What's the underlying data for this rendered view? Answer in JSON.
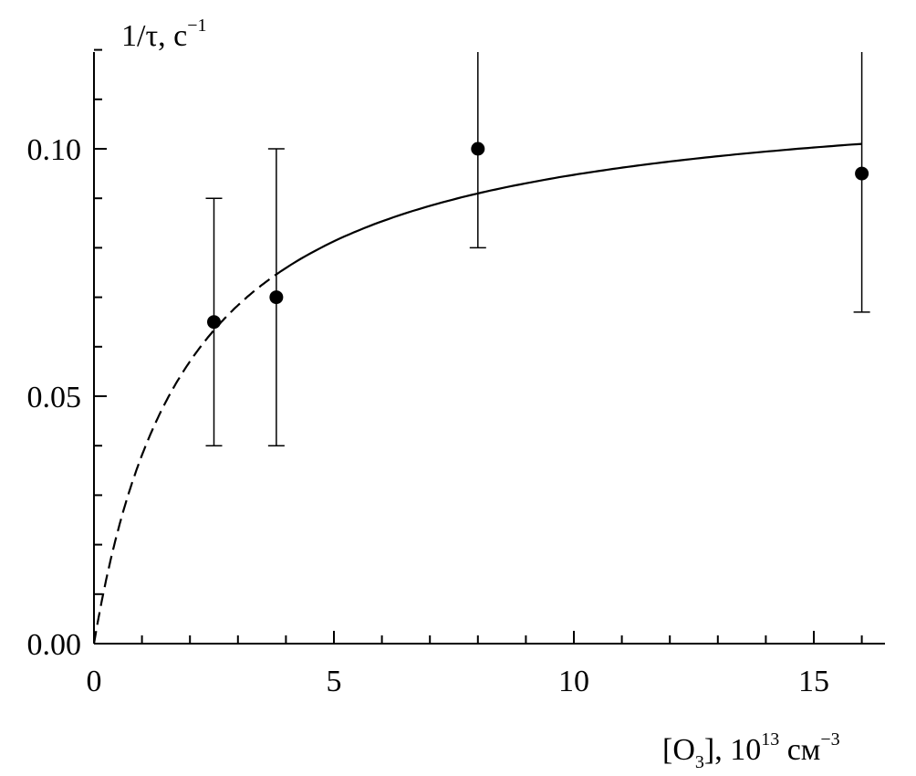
{
  "chart_data": {
    "type": "scatter",
    "ylabel": {
      "text": "1/τ, с",
      "sup": "−1"
    },
    "xlabel": {
      "pre": "[O",
      "sub": "3",
      "mid": "], 10",
      "sup1": "13",
      "post": " см",
      "sup2": "−3"
    },
    "xlim": [
      0,
      16.5
    ],
    "ylim": [
      0,
      0.12
    ],
    "x_ticks": [
      0,
      5,
      10,
      15
    ],
    "x_tick_labels": [
      "0",
      "5",
      "10",
      "15"
    ],
    "x_minor_step": 1,
    "y_ticks": [
      0.0,
      0.05,
      0.1
    ],
    "y_tick_labels": [
      "0.00",
      "0.05",
      "0.10"
    ],
    "y_minor_step": 0.01,
    "grid": false,
    "points": [
      {
        "x": 2.5,
        "y": 0.065,
        "err_low": 0.04,
        "err_high": 0.09
      },
      {
        "x": 3.8,
        "y": 0.07,
        "err_low": 0.04,
        "err_high": 0.1
      },
      {
        "x": 8.0,
        "y": 0.1,
        "err_low": 0.08,
        "err_high": 0.12
      },
      {
        "x": 16.0,
        "y": 0.095,
        "err_low": 0.067,
        "err_high": 0.12
      }
    ],
    "fit_curve": {
      "model": "y = a*x/(b + x)",
      "a": 0.1135,
      "b": 1.98,
      "dashed_range": [
        0,
        3.8
      ],
      "solid_range": [
        3.8,
        16.0
      ]
    }
  }
}
